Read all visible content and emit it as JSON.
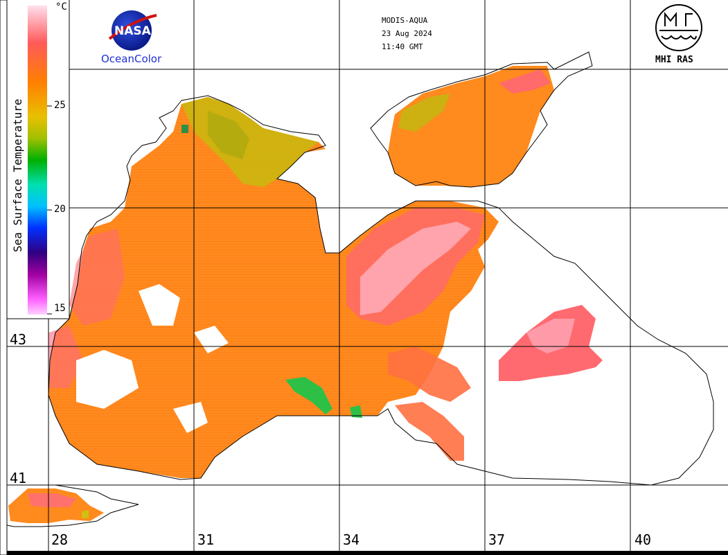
{
  "header": {
    "sensor": "MODIS-AQUA",
    "date": "23 Aug 2024",
    "time": "11:40 GMT"
  },
  "logos": {
    "nasa_text": "NASA",
    "oceancolor": "OceanColor",
    "mhi": "MHI RAS"
  },
  "legend": {
    "title": "Sea Surface Temperature",
    "unit": "°C",
    "ticks": [
      "25",
      "20",
      "15"
    ],
    "colors": [
      "#f9c9f0",
      "#e040e0",
      "#6a006a",
      "#0000ff",
      "#00e0e8",
      "#00c000",
      "#c8d000",
      "#ffc000",
      "#ff8000",
      "#ff5050",
      "#ffc8d8"
    ]
  },
  "axes": {
    "longitude": [
      "28",
      "31",
      "34",
      "37",
      "40"
    ],
    "latitude": [
      "43",
      "41"
    ]
  },
  "colors": {
    "sea_orange": "#ff8a1e",
    "sea_warm": "#ff6a40",
    "sea_pink": "#ff7a8a",
    "sea_yellow": "#c8b410",
    "sea_green": "#2ec046"
  }
}
